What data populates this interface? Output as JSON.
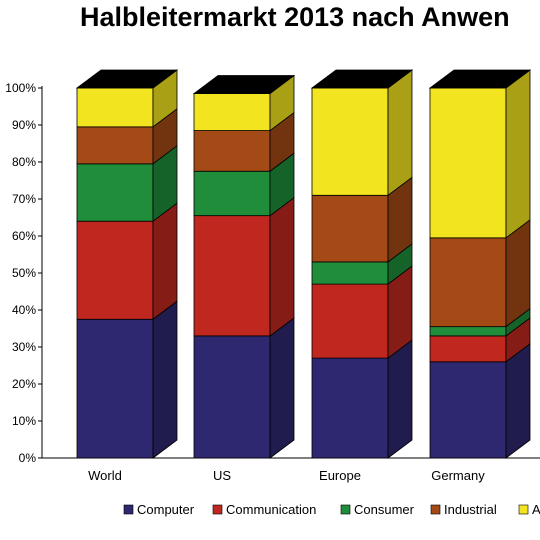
{
  "chart_data": {
    "type": "bar",
    "stacked": true,
    "three_d": true,
    "title": "Halbleitermarkt 2013 nach Anwen",
    "categories": [
      "World",
      "US",
      "Europe",
      "Germany"
    ],
    "yticks": [
      "0%",
      "10%",
      "20%",
      "30%",
      "40%",
      "50%",
      "60%",
      "70%",
      "80%",
      "90%",
      "100%"
    ],
    "ylim": [
      0,
      100
    ],
    "grid": false,
    "legend_position": "bottom",
    "series": [
      {
        "name": "Computer",
        "color": "#2e2870",
        "values": [
          37.5,
          33,
          27,
          26
        ]
      },
      {
        "name": "Communication",
        "color": "#c0281f",
        "values": [
          26.5,
          32.5,
          20,
          7
        ]
      },
      {
        "name": "Consumer",
        "color": "#1f8d3a",
        "values": [
          15.5,
          12,
          6,
          2.5
        ]
      },
      {
        "name": "Industrial",
        "color": "#a34a16",
        "values": [
          10,
          11,
          18,
          24
        ]
      },
      {
        "name": "A",
        "color": "#f2e51f",
        "values": [
          10.5,
          10,
          29,
          40.5
        ]
      }
    ]
  }
}
